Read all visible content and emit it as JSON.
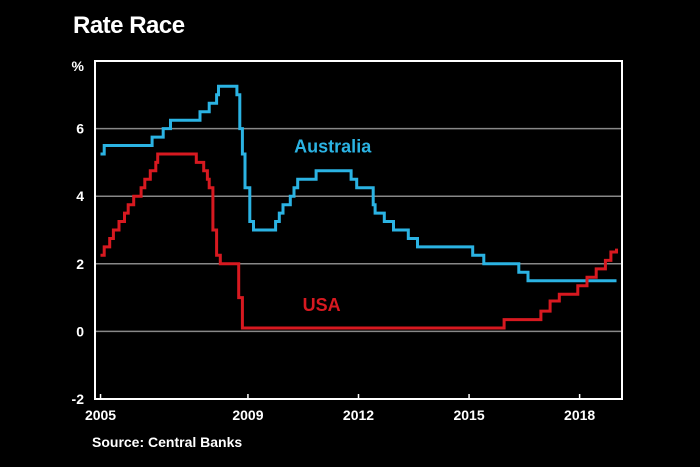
{
  "title": "Rate Race",
  "source": "Source: Central Banks",
  "chart_data": {
    "type": "line",
    "title": "Rate Race",
    "ylabel": "%",
    "xlim": [
      2004.85,
      2019.15
    ],
    "ylim": [
      -2,
      8
    ],
    "yticks": [
      -2,
      0,
      2,
      4,
      6
    ],
    "ytick_labels": [
      "-2",
      "0",
      "2",
      "4",
      "6"
    ],
    "ylabel_tick": "%",
    "xticks": [
      2005,
      2009,
      2012,
      2015,
      2018
    ],
    "xtick_labels": [
      "2005",
      "2009",
      "2012",
      "2015",
      "2018"
    ],
    "gridlines": [
      2,
      4,
      6
    ],
    "grid": true,
    "colors": {
      "australia": "#2bb3e3",
      "usa": "#d71920",
      "grid": "#888888",
      "frame": "#ffffff"
    },
    "series": [
      {
        "name": "Australia",
        "color": "#2bb3e3",
        "points": [
          [
            2005.0,
            5.25
          ],
          [
            2005.1,
            5.5
          ],
          [
            2006.4,
            5.75
          ],
          [
            2006.7,
            6.0
          ],
          [
            2006.9,
            6.25
          ],
          [
            2007.7,
            6.5
          ],
          [
            2007.95,
            6.75
          ],
          [
            2008.15,
            7.0
          ],
          [
            2008.2,
            7.25
          ],
          [
            2008.7,
            7.0
          ],
          [
            2008.78,
            6.0
          ],
          [
            2008.85,
            5.25
          ],
          [
            2008.92,
            4.25
          ],
          [
            2009.05,
            3.25
          ],
          [
            2009.15,
            3.0
          ],
          [
            2009.75,
            3.25
          ],
          [
            2009.85,
            3.5
          ],
          [
            2009.95,
            3.75
          ],
          [
            2010.15,
            4.0
          ],
          [
            2010.25,
            4.25
          ],
          [
            2010.35,
            4.5
          ],
          [
            2010.85,
            4.75
          ],
          [
            2011.8,
            4.5
          ],
          [
            2011.95,
            4.25
          ],
          [
            2012.4,
            3.75
          ],
          [
            2012.45,
            3.5
          ],
          [
            2012.7,
            3.25
          ],
          [
            2012.95,
            3.0
          ],
          [
            2013.35,
            2.75
          ],
          [
            2013.6,
            2.5
          ],
          [
            2015.1,
            2.25
          ],
          [
            2015.4,
            2.0
          ],
          [
            2016.35,
            1.75
          ],
          [
            2016.6,
            1.5
          ],
          [
            2019.0,
            1.5
          ]
        ]
      },
      {
        "name": "USA",
        "color": "#d71920",
        "points": [
          [
            2005.0,
            2.25
          ],
          [
            2005.1,
            2.5
          ],
          [
            2005.25,
            2.75
          ],
          [
            2005.35,
            3.0
          ],
          [
            2005.5,
            3.25
          ],
          [
            2005.65,
            3.5
          ],
          [
            2005.75,
            3.75
          ],
          [
            2005.9,
            4.0
          ],
          [
            2006.1,
            4.25
          ],
          [
            2006.2,
            4.5
          ],
          [
            2006.35,
            4.75
          ],
          [
            2006.5,
            5.0
          ],
          [
            2006.55,
            5.25
          ],
          [
            2007.6,
            5.0
          ],
          [
            2007.8,
            4.75
          ],
          [
            2007.9,
            4.5
          ],
          [
            2007.95,
            4.25
          ],
          [
            2008.05,
            3.0
          ],
          [
            2008.15,
            2.25
          ],
          [
            2008.25,
            2.0
          ],
          [
            2008.75,
            1.0
          ],
          [
            2008.85,
            0.1
          ],
          [
            2015.95,
            0.35
          ],
          [
            2016.95,
            0.6
          ],
          [
            2017.2,
            0.9
          ],
          [
            2017.45,
            1.1
          ],
          [
            2017.95,
            1.35
          ],
          [
            2018.2,
            1.6
          ],
          [
            2018.45,
            1.85
          ],
          [
            2018.7,
            2.1
          ],
          [
            2018.85,
            2.35
          ],
          [
            2019.0,
            2.45
          ]
        ]
      }
    ],
    "annotations": [
      {
        "text": "Australia",
        "x": 2011.3,
        "y": 5.3
      },
      {
        "text": "USA",
        "x": 2011.0,
        "y": 0.6
      }
    ]
  }
}
